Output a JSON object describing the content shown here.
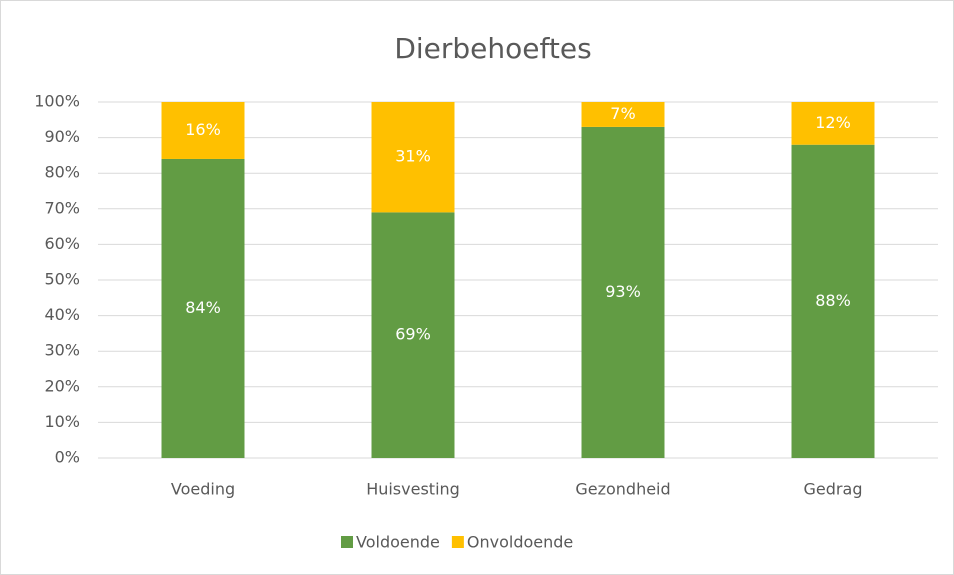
{
  "chart_data": {
    "type": "stacked_bar",
    "title": "Dierbehoeftes",
    "categories": [
      "Voeding",
      "Huisvesting",
      "Gezondheid",
      "Gedrag"
    ],
    "series": [
      {
        "name": "Voldoende",
        "color": "#629c44",
        "values": [
          84,
          69,
          93,
          88
        ],
        "value_labels": [
          "84%",
          "69%",
          "93%",
          "88%"
        ]
      },
      {
        "name": "Onvoldoende",
        "color": "#ffc000",
        "values": [
          16,
          31,
          7,
          12
        ],
        "value_labels": [
          "16%",
          "31%",
          "7%",
          "12%"
        ]
      }
    ],
    "ylim": [
      0,
      100
    ],
    "yticks": [
      {
        "value": 0,
        "label": "0%"
      },
      {
        "value": 10,
        "label": "10%"
      },
      {
        "value": 20,
        "label": "20%"
      },
      {
        "value": 30,
        "label": "30%"
      },
      {
        "value": 40,
        "label": "40%"
      },
      {
        "value": 50,
        "label": "50%"
      },
      {
        "value": 60,
        "label": "60%"
      },
      {
        "value": 70,
        "label": "70%"
      },
      {
        "value": 80,
        "label": "80%"
      },
      {
        "value": 90,
        "label": "90%"
      },
      {
        "value": 100,
        "label": "100%"
      }
    ],
    "grid": true,
    "legend": "bottom"
  }
}
